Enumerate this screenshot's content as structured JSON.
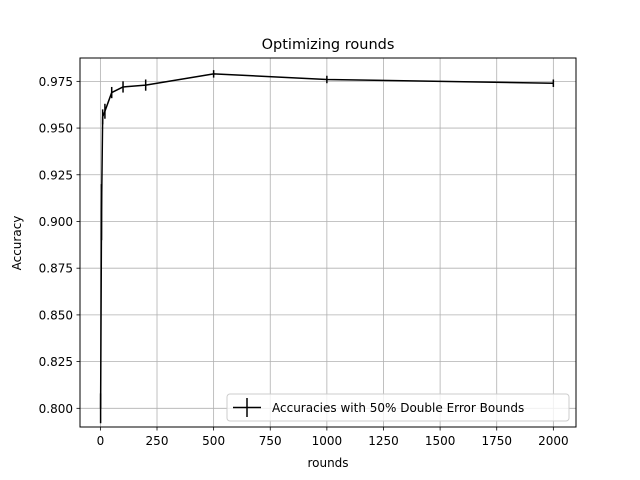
{
  "chart_data": {
    "type": "line",
    "title": "Optimizing rounds",
    "xlabel": "rounds",
    "ylabel": "Accuracy",
    "xlim": [
      -90,
      2100
    ],
    "ylim": [
      0.79,
      0.9875
    ],
    "xticks": [
      0,
      250,
      500,
      750,
      1000,
      1250,
      1500,
      1750,
      2000
    ],
    "xtick_labels": [
      "0",
      "250",
      "500",
      "750",
      "1000",
      "1250",
      "1500",
      "1750",
      "2000"
    ],
    "yticks": [
      0.8,
      0.825,
      0.85,
      0.875,
      0.9,
      0.925,
      0.95,
      0.975
    ],
    "ytick_labels": [
      "0.800",
      "0.825",
      "0.850",
      "0.875",
      "0.900",
      "0.925",
      "0.950",
      "0.975"
    ],
    "grid": true,
    "legend_position": "lower-right",
    "series": [
      {
        "name": "Accuracies with 50% Double Error Bounds",
        "color": "#000000",
        "x": [
          1,
          5,
          10,
          20,
          50,
          100,
          200,
          500,
          1000,
          2000
        ],
        "y": [
          0.8,
          0.905,
          0.956,
          0.959,
          0.969,
          0.972,
          0.973,
          0.979,
          0.976,
          0.974
        ],
        "err": [
          0.008,
          0.015,
          0.004,
          0.004,
          0.003,
          0.003,
          0.003,
          0.002,
          0.002,
          0.002
        ]
      }
    ]
  }
}
